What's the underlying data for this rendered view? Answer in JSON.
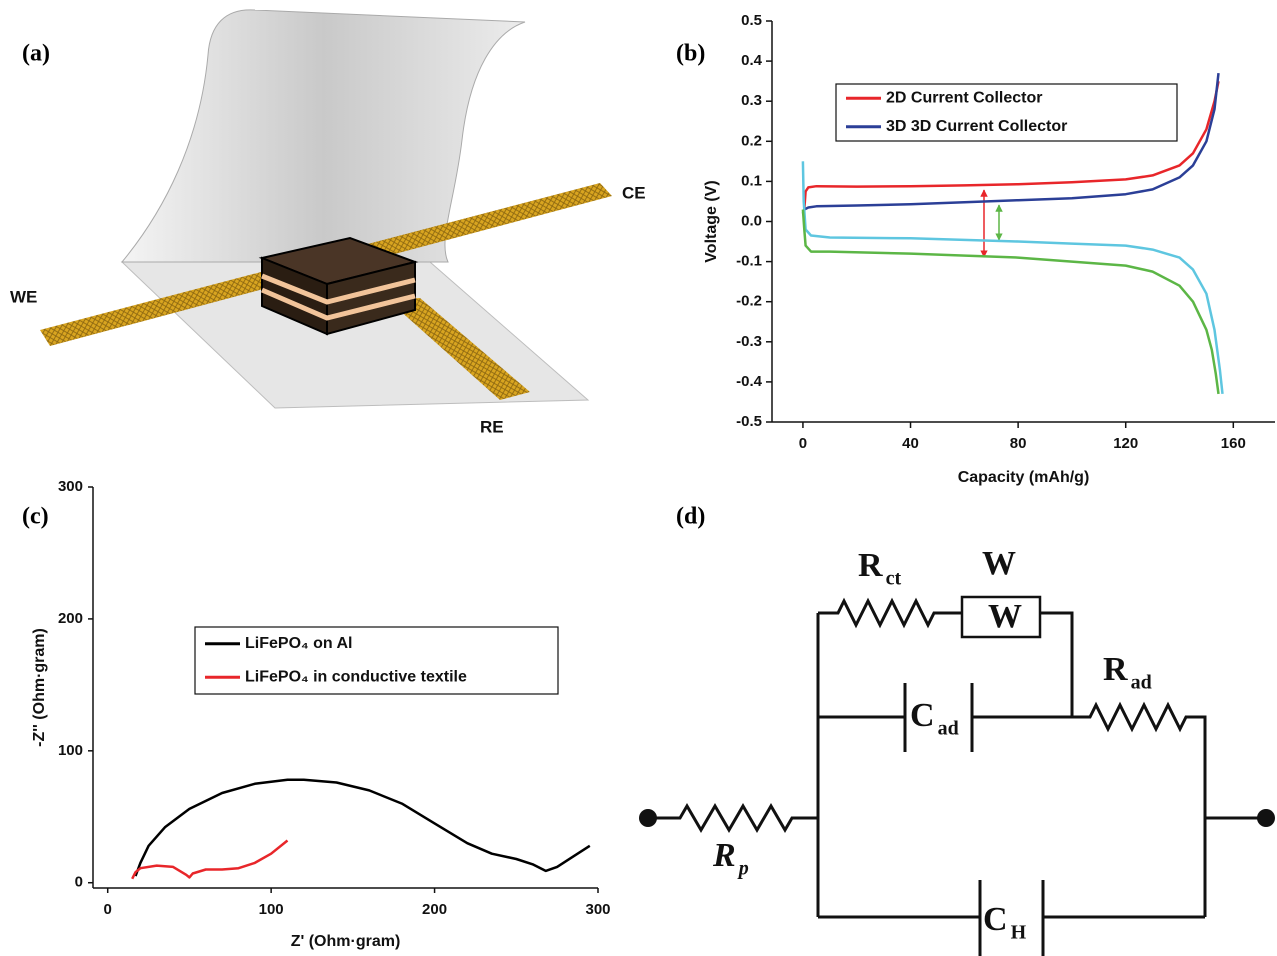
{
  "panel_labels": [
    "(a)",
    "(b)",
    "(c)",
    "(d)"
  ],
  "diagram": {
    "labels": [
      "WE",
      "CE",
      "RE"
    ]
  },
  "chart_data": [
    {
      "type": "line",
      "x_label": "Capacity (mAh/g)",
      "y_label": "Voltage (V)",
      "xlim": [
        -11.5,
        175.5
      ],
      "xticks": [
        0,
        40,
        80,
        120,
        160
      ],
      "ylim": [
        -0.5,
        0.5
      ],
      "yticks": [
        -0.5,
        -0.4,
        -0.3,
        -0.2,
        -0.1,
        {
          "value": 0,
          "label": "0.0"
        },
        0.1,
        0.2,
        0.3,
        0.4,
        0.5
      ],
      "series": [
        {
          "name": "2D Current Collector",
          "color": "#e8262a",
          "x": [
            0.5,
            1,
            2,
            5,
            20,
            40,
            60,
            80,
            100,
            120,
            130,
            140,
            145,
            150,
            153,
            154.5
          ],
          "values": [
            0.03,
            0.075,
            0.085,
            0.088,
            0.087,
            0.088,
            0.09,
            0.093,
            0.098,
            0.105,
            0.115,
            0.14,
            0.17,
            0.23,
            0.3,
            0.35
          ]
        },
        {
          "name": "3D 3D Current Collector",
          "color": "#2b3f97",
          "x": [
            0,
            0.5,
            2,
            5,
            20,
            40,
            60,
            80,
            100,
            120,
            130,
            140,
            145,
            150,
            153,
            154.5
          ],
          "values": [
            0.02,
            0.03,
            0.035,
            0.038,
            0.04,
            0.043,
            0.048,
            0.053,
            0.058,
            0.068,
            0.08,
            0.11,
            0.14,
            0.2,
            0.28,
            0.37
          ]
        },
        {
          "color": "#5ec6e0",
          "x": [
            0,
            0.3,
            1,
            3,
            10,
            40,
            80,
            100,
            120,
            130,
            140,
            145,
            150,
            153,
            155,
            156
          ],
          "values": [
            0.15,
            0.05,
            -0.02,
            -0.035,
            -0.04,
            -0.042,
            -0.05,
            -0.055,
            -0.06,
            -0.07,
            -0.09,
            -0.12,
            -0.18,
            -0.27,
            -0.37,
            -0.43
          ]
        },
        {
          "color": "#5cb646",
          "x": [
            0,
            0.5,
            1,
            3,
            10,
            40,
            80,
            100,
            120,
            130,
            140,
            145,
            150,
            152,
            153.5,
            154.5
          ],
          "values": [
            0.03,
            -0.02,
            -0.06,
            -0.075,
            -0.075,
            -0.08,
            -0.09,
            -0.1,
            -0.11,
            -0.125,
            -0.16,
            -0.2,
            -0.27,
            -0.32,
            -0.38,
            -0.43
          ]
        }
      ]
    },
    {
      "type": "line",
      "x_label": "Z' (Ohm·gram)",
      "y_label": "-Z'' (Ohm·gram)",
      "xlim": [
        -9,
        300
      ],
      "xticks": [
        0,
        100,
        200,
        300
      ],
      "ylim": [
        -4,
        300
      ],
      "yticks": [
        0,
        100,
        200,
        300
      ],
      "series": [
        {
          "name": "LiFePO₄ on Al",
          "color": "#000000",
          "x": [
            17,
            20,
            25,
            35,
            50,
            70,
            90,
            110,
            120,
            140,
            160,
            180,
            200,
            220,
            235,
            250,
            260,
            268,
            275,
            285,
            295
          ],
          "values": [
            5,
            15,
            28,
            42,
            56,
            68,
            75,
            78,
            78,
            76,
            70,
            60,
            45,
            30,
            22,
            18,
            14,
            9,
            12,
            20,
            28
          ]
        },
        {
          "name": "LiFePO₄ in conductive textile",
          "color": "#e8262a",
          "x": [
            15,
            17,
            20,
            30,
            40,
            48,
            50,
            52,
            60,
            70,
            80,
            90,
            100,
            110
          ],
          "values": [
            3,
            8,
            11,
            13,
            12,
            6,
            4,
            7,
            10,
            10,
            11,
            15,
            22,
            32
          ]
        }
      ]
    }
  ],
  "circuit": {
    "labels": [
      {
        "main": "R",
        "sub": "ct"
      },
      {
        "main": "W"
      },
      {
        "main": "W"
      },
      {
        "main": "R",
        "sub": "ad"
      },
      {
        "main": "C",
        "sub": "ad"
      },
      {
        "main": "R",
        "sub": "p"
      },
      {
        "main": "C",
        "sub": "H"
      }
    ]
  }
}
